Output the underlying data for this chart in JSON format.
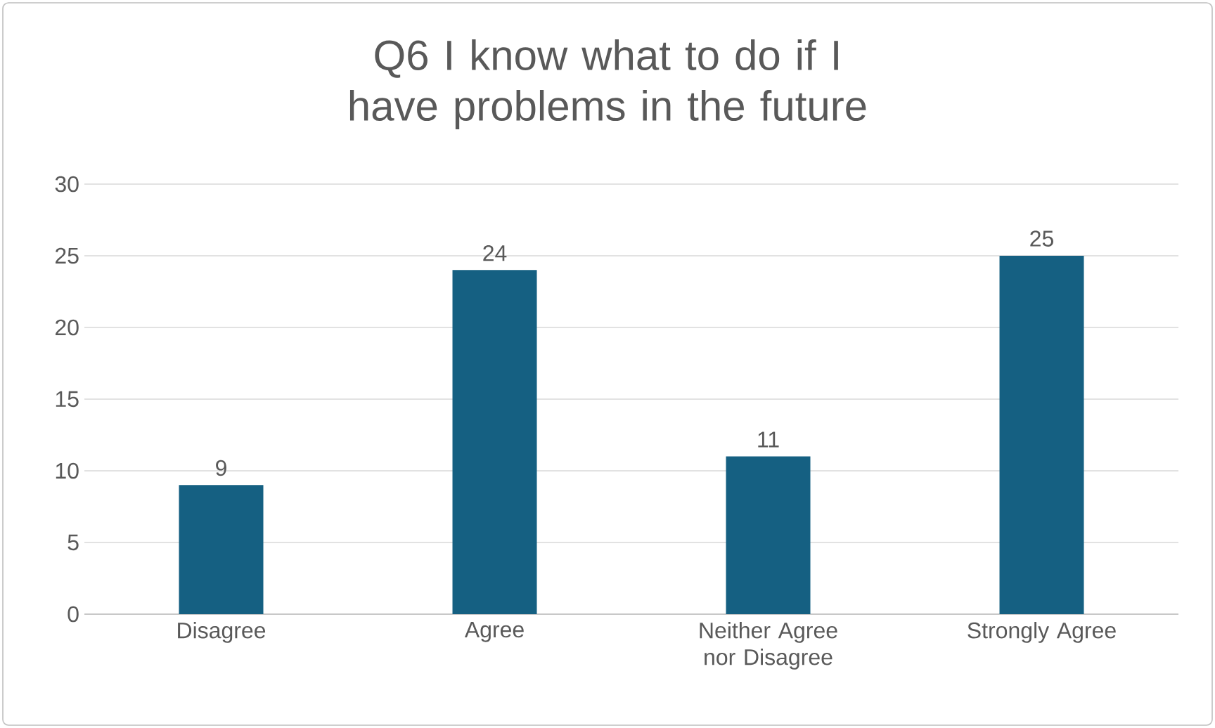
{
  "chart_data": {
    "type": "bar",
    "title": "Q6 I know what to do if I have problems in the future",
    "categories": [
      "Disagree",
      "Agree",
      "Neither Agree nor Disagree",
      "Strongly Agree"
    ],
    "values": [
      9,
      24,
      11,
      25
    ],
    "color": "#156082",
    "ylim": [
      0,
      30
    ],
    "yticks": [
      0,
      5,
      10,
      15,
      20,
      25,
      30
    ],
    "grid": "y",
    "data_labels": true
  }
}
